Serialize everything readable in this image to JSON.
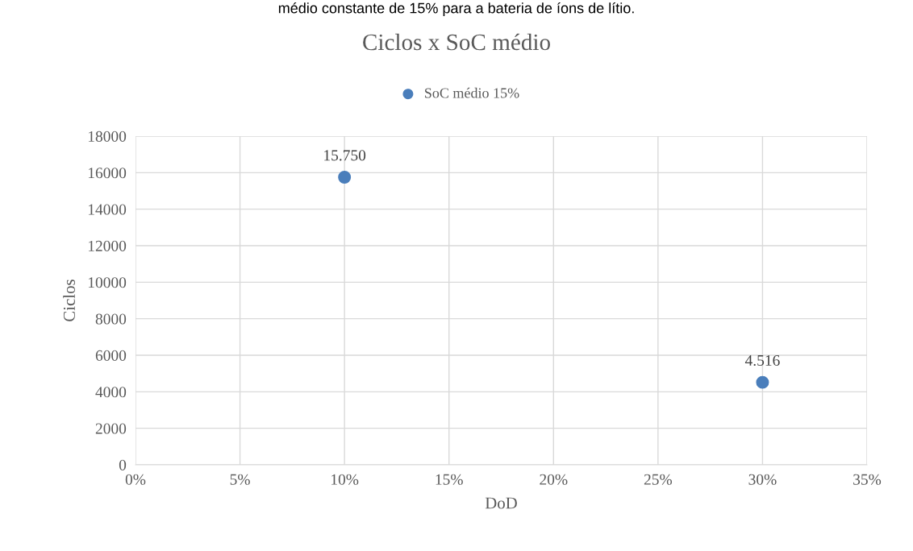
{
  "chart_data": {
    "type": "scatter",
    "title": "Ciclos x SoC médio",
    "xlabel": "DoD",
    "ylabel": "Ciclos",
    "annotations": [
      "médio constante de 15% para a bateria de íons de lítio."
    ],
    "x": [
      0.1,
      0.3
    ],
    "series": [
      {
        "name": "SoC médio 15%",
        "color": "#4a7ebb",
        "values": [
          15750,
          4516
        ],
        "value_labels": [
          "15.750",
          "4.516"
        ]
      }
    ],
    "xlim": [
      0,
      0.35
    ],
    "xticks": [
      {
        "value": 0,
        "label": "0%"
      },
      {
        "value": 0.05,
        "label": "5%"
      },
      {
        "value": 0.1,
        "label": "10%"
      },
      {
        "value": 0.15,
        "label": "15%"
      },
      {
        "value": 0.2,
        "label": "20%"
      },
      {
        "value": 0.25,
        "label": "25%"
      },
      {
        "value": 0.3,
        "label": "30%"
      },
      {
        "value": 0.35,
        "label": "35%"
      }
    ],
    "ylim": [
      0,
      18000
    ],
    "yticks": [
      0,
      2000,
      4000,
      6000,
      8000,
      10000,
      12000,
      14000,
      16000,
      18000
    ],
    "grid": true,
    "legend": "top",
    "marker": "circle"
  }
}
